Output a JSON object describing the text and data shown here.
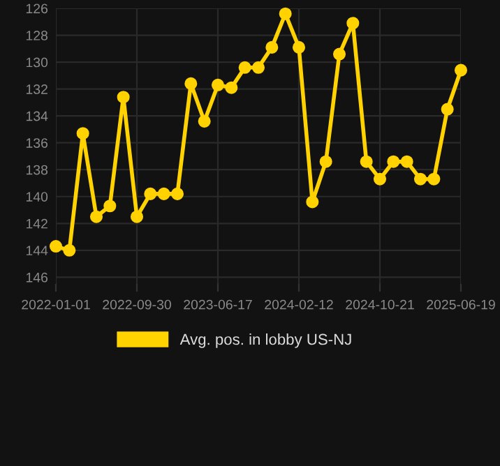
{
  "chart_data": {
    "type": "line",
    "categories": [
      "2022-01-01",
      null,
      null,
      null,
      null,
      null,
      "2022-09-30",
      null,
      null,
      null,
      null,
      null,
      "2023-06-17",
      null,
      null,
      null,
      null,
      null,
      "2024-02-12",
      null,
      null,
      null,
      null,
      null,
      "2024-10-21",
      null,
      null,
      null,
      null,
      null,
      "2025-06-19"
    ],
    "series": [
      {
        "name": "Avg. pos. in lobby US-NJ",
        "color": "#ffd200",
        "values": [
          143.7,
          144.0,
          135.3,
          141.5,
          140.7,
          132.6,
          141.5,
          139.8,
          139.8,
          139.8,
          131.6,
          134.4,
          131.7,
          131.9,
          130.4,
          130.4,
          128.9,
          126.4,
          128.9,
          140.4,
          137.4,
          129.4,
          127.1,
          137.4,
          138.7,
          137.4,
          137.4,
          138.7,
          138.7,
          133.5,
          130.6
        ]
      }
    ],
    "ylim": [
      146.5,
      126
    ],
    "yticks": [
      126,
      128,
      130,
      132,
      134,
      136,
      138,
      140,
      142,
      144,
      146
    ],
    "grid": true,
    "legend": "bottom",
    "marker": "circle",
    "line_style": "solid"
  }
}
